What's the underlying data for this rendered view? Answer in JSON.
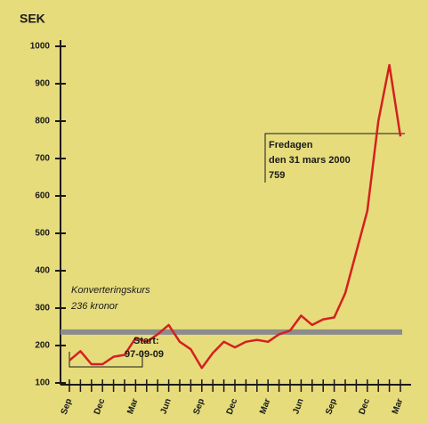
{
  "chart_data": {
    "type": "line",
    "title": "SEK",
    "categories": [
      "Sep",
      null,
      null,
      "Dec",
      null,
      null,
      "Mar",
      null,
      null,
      "Jun",
      null,
      null,
      "Sep",
      null,
      null,
      "Dec",
      null,
      null,
      "Mar",
      null,
      null,
      "Jun",
      null,
      null,
      "Sep",
      null,
      null,
      "Dec",
      null,
      null,
      "Mar"
    ],
    "values": [
      160,
      185,
      150,
      150,
      170,
      175,
      220,
      210,
      230,
      255,
      210,
      190,
      140,
      180,
      210,
      195,
      210,
      215,
      210,
      230,
      240,
      280,
      255,
      270,
      275,
      340,
      450,
      560,
      800,
      950,
      759
    ],
    "color": "#d42020",
    "ylim": [
      100,
      1000
    ],
    "yticks": [
      100,
      200,
      300,
      400,
      500,
      600,
      700,
      800,
      900,
      1000
    ],
    "reference_line": {
      "value": 236,
      "color": "#8c8c8c"
    },
    "annotations": [
      {
        "lines": [
          "Konverteringskurs",
          "236 kronor"
        ]
      },
      {
        "lines": [
          "Start:",
          "97-09-09"
        ]
      },
      {
        "lines": [
          "Fredagen",
          "den 31 mars 2000",
          "759"
        ]
      }
    ]
  }
}
